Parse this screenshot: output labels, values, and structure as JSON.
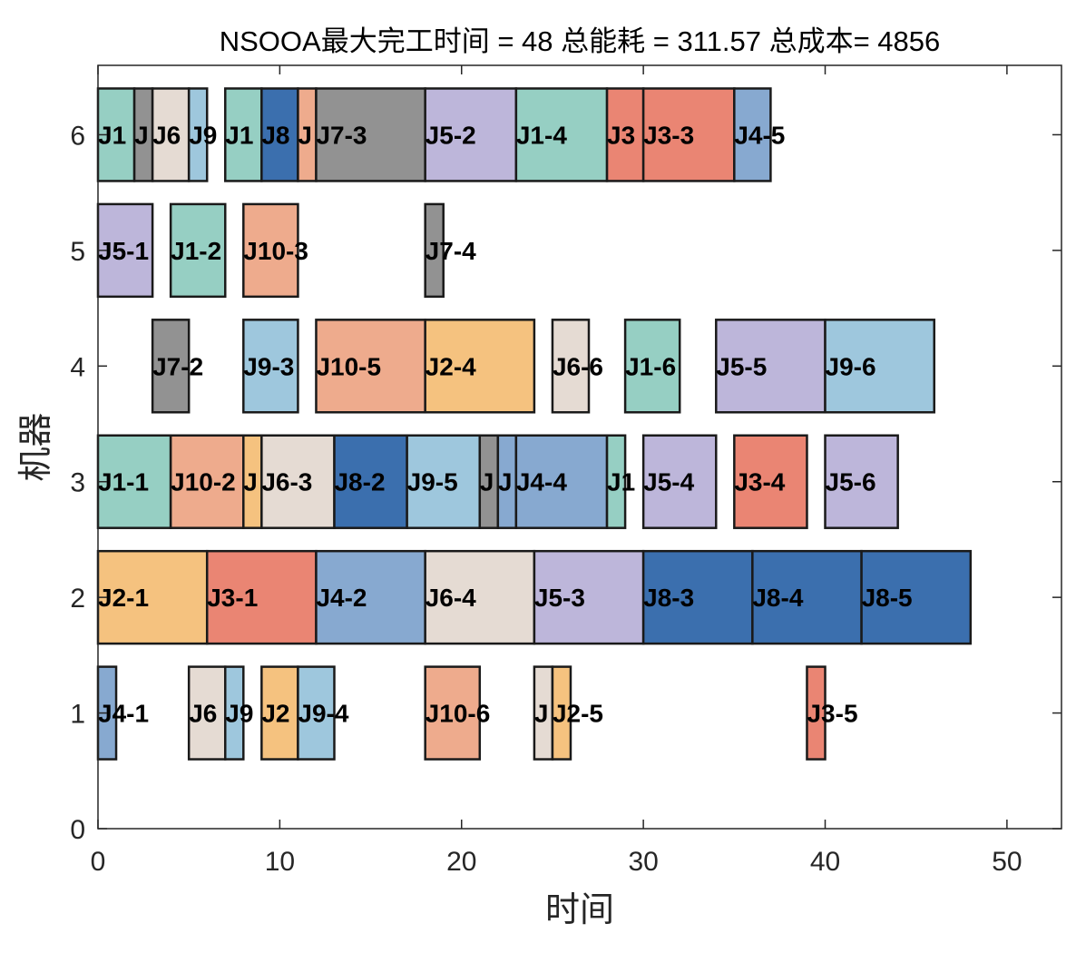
{
  "chart_data": {
    "type": "gantt",
    "title": "NSOOA最大完工时间 = 48 总能耗 = 311.57 总成本= 4856",
    "xlabel": "时间",
    "ylabel": "机器",
    "xlim": [
      0,
      53
    ],
    "ylim": [
      0,
      6.6
    ],
    "xticks": [
      "0",
      "10",
      "20",
      "30",
      "40",
      "50"
    ],
    "yticks": [
      "0",
      "1",
      "2",
      "3",
      "4",
      "5",
      "6"
    ],
    "grid": false,
    "job_colors": {
      "J1": "#96cfc3",
      "J2": "#f5c27f",
      "J3": "#ea8573",
      "J4": "#87a9d0",
      "J5": "#bdb6da",
      "J6": "#e5dbd3",
      "J7": "#929292",
      "J8": "#3b6fae",
      "J9": "#9ec7dd",
      "J10": "#eeab8d"
    },
    "tasks": [
      {
        "machine": 6,
        "start": 0,
        "end": 2,
        "job": "J1",
        "label": "J1"
      },
      {
        "machine": 6,
        "start": 2,
        "end": 3,
        "job": "J7",
        "label": "J"
      },
      {
        "machine": 6,
        "start": 3,
        "end": 5,
        "job": "J6",
        "label": "J6"
      },
      {
        "machine": 6,
        "start": 5,
        "end": 6,
        "job": "J9",
        "label": "J9"
      },
      {
        "machine": 6,
        "start": 7,
        "end": 9,
        "job": "J1",
        "label": "J1"
      },
      {
        "machine": 6,
        "start": 9,
        "end": 11,
        "job": "J8",
        "label": "J8"
      },
      {
        "machine": 6,
        "start": 11,
        "end": 12,
        "job": "J10",
        "label": "J"
      },
      {
        "machine": 6,
        "start": 12,
        "end": 18,
        "job": "J7",
        "label": "J7-3"
      },
      {
        "machine": 6,
        "start": 18,
        "end": 23,
        "job": "J5",
        "label": "J5-2"
      },
      {
        "machine": 6,
        "start": 23,
        "end": 28,
        "job": "J1",
        "label": "J1-4"
      },
      {
        "machine": 6,
        "start": 28,
        "end": 30,
        "job": "J3",
        "label": "J3"
      },
      {
        "machine": 6,
        "start": 30,
        "end": 35,
        "job": "J3",
        "label": "J3-3"
      },
      {
        "machine": 6,
        "start": 35,
        "end": 37,
        "job": "J4",
        "label": "J4-5"
      },
      {
        "machine": 5,
        "start": 0,
        "end": 3,
        "job": "J5",
        "label": "J5-1"
      },
      {
        "machine": 5,
        "start": 4,
        "end": 7,
        "job": "J1",
        "label": "J1-2"
      },
      {
        "machine": 5,
        "start": 8,
        "end": 11,
        "job": "J10",
        "label": "J10-3"
      },
      {
        "machine": 5,
        "start": 18,
        "end": 19,
        "job": "J7",
        "label": "J7-4"
      },
      {
        "machine": 4,
        "start": 3,
        "end": 5,
        "job": "J7",
        "label": "J7-2"
      },
      {
        "machine": 4,
        "start": 8,
        "end": 11,
        "job": "J9",
        "label": "J9-3"
      },
      {
        "machine": 4,
        "start": 12,
        "end": 18,
        "job": "J10",
        "label": "J10-5"
      },
      {
        "machine": 4,
        "start": 18,
        "end": 24,
        "job": "J2",
        "label": "J2-4"
      },
      {
        "machine": 4,
        "start": 25,
        "end": 27,
        "job": "J6",
        "label": "J6-6"
      },
      {
        "machine": 4,
        "start": 29,
        "end": 32,
        "job": "J1",
        "label": "J1-6"
      },
      {
        "machine": 4,
        "start": 34,
        "end": 40,
        "job": "J5",
        "label": "J5-5"
      },
      {
        "machine": 4,
        "start": 40,
        "end": 46,
        "job": "J9",
        "label": "J9-6"
      },
      {
        "machine": 3,
        "start": 0,
        "end": 4,
        "job": "J1",
        "label": "J1-1"
      },
      {
        "machine": 3,
        "start": 4,
        "end": 8,
        "job": "J10",
        "label": "J10-2"
      },
      {
        "machine": 3,
        "start": 8,
        "end": 9,
        "job": "J2",
        "label": "J"
      },
      {
        "machine": 3,
        "start": 9,
        "end": 13,
        "job": "J6",
        "label": "J6-3"
      },
      {
        "machine": 3,
        "start": 13,
        "end": 17,
        "job": "J8",
        "label": "J8-2"
      },
      {
        "machine": 3,
        "start": 17,
        "end": 21,
        "job": "J9",
        "label": "J9-5"
      },
      {
        "machine": 3,
        "start": 21,
        "end": 22,
        "job": "J7",
        "label": "J"
      },
      {
        "machine": 3,
        "start": 22,
        "end": 23,
        "job": "J4",
        "label": "J"
      },
      {
        "machine": 3,
        "start": 23,
        "end": 28,
        "job": "J4",
        "label": "J4-4"
      },
      {
        "machine": 3,
        "start": 28,
        "end": 29,
        "job": "J1",
        "label": "J1"
      },
      {
        "machine": 3,
        "start": 30,
        "end": 34,
        "job": "J5",
        "label": "J5-4"
      },
      {
        "machine": 3,
        "start": 35,
        "end": 39,
        "job": "J3",
        "label": "J3-4"
      },
      {
        "machine": 3,
        "start": 40,
        "end": 44,
        "job": "J5",
        "label": "J5-6"
      },
      {
        "machine": 2,
        "start": 0,
        "end": 6,
        "job": "J2",
        "label": "J2-1"
      },
      {
        "machine": 2,
        "start": 6,
        "end": 12,
        "job": "J3",
        "label": "J3-1"
      },
      {
        "machine": 2,
        "start": 12,
        "end": 18,
        "job": "J4",
        "label": "J4-2"
      },
      {
        "machine": 2,
        "start": 18,
        "end": 24,
        "job": "J6",
        "label": "J6-4"
      },
      {
        "machine": 2,
        "start": 24,
        "end": 30,
        "job": "J5",
        "label": "J5-3"
      },
      {
        "machine": 2,
        "start": 30,
        "end": 36,
        "job": "J8",
        "label": "J8-3"
      },
      {
        "machine": 2,
        "start": 36,
        "end": 42,
        "job": "J8",
        "label": "J8-4"
      },
      {
        "machine": 2,
        "start": 42,
        "end": 48,
        "job": "J8",
        "label": "J8-5"
      },
      {
        "machine": 1,
        "start": 0,
        "end": 1,
        "job": "J4",
        "label": "J4-1"
      },
      {
        "machine": 1,
        "start": 5,
        "end": 7,
        "job": "J6",
        "label": "J6"
      },
      {
        "machine": 1,
        "start": 7,
        "end": 8,
        "job": "J9",
        "label": "J9"
      },
      {
        "machine": 1,
        "start": 9,
        "end": 11,
        "job": "J2",
        "label": "J2"
      },
      {
        "machine": 1,
        "start": 11,
        "end": 13,
        "job": "J9",
        "label": "J9-4"
      },
      {
        "machine": 1,
        "start": 18,
        "end": 21,
        "job": "J10",
        "label": "J10-6"
      },
      {
        "machine": 1,
        "start": 24,
        "end": 25,
        "job": "J6",
        "label": "J"
      },
      {
        "machine": 1,
        "start": 25,
        "end": 26,
        "job": "J2",
        "label": "J2-5"
      },
      {
        "machine": 1,
        "start": 39,
        "end": 40,
        "job": "J3",
        "label": "J3-5"
      }
    ]
  }
}
